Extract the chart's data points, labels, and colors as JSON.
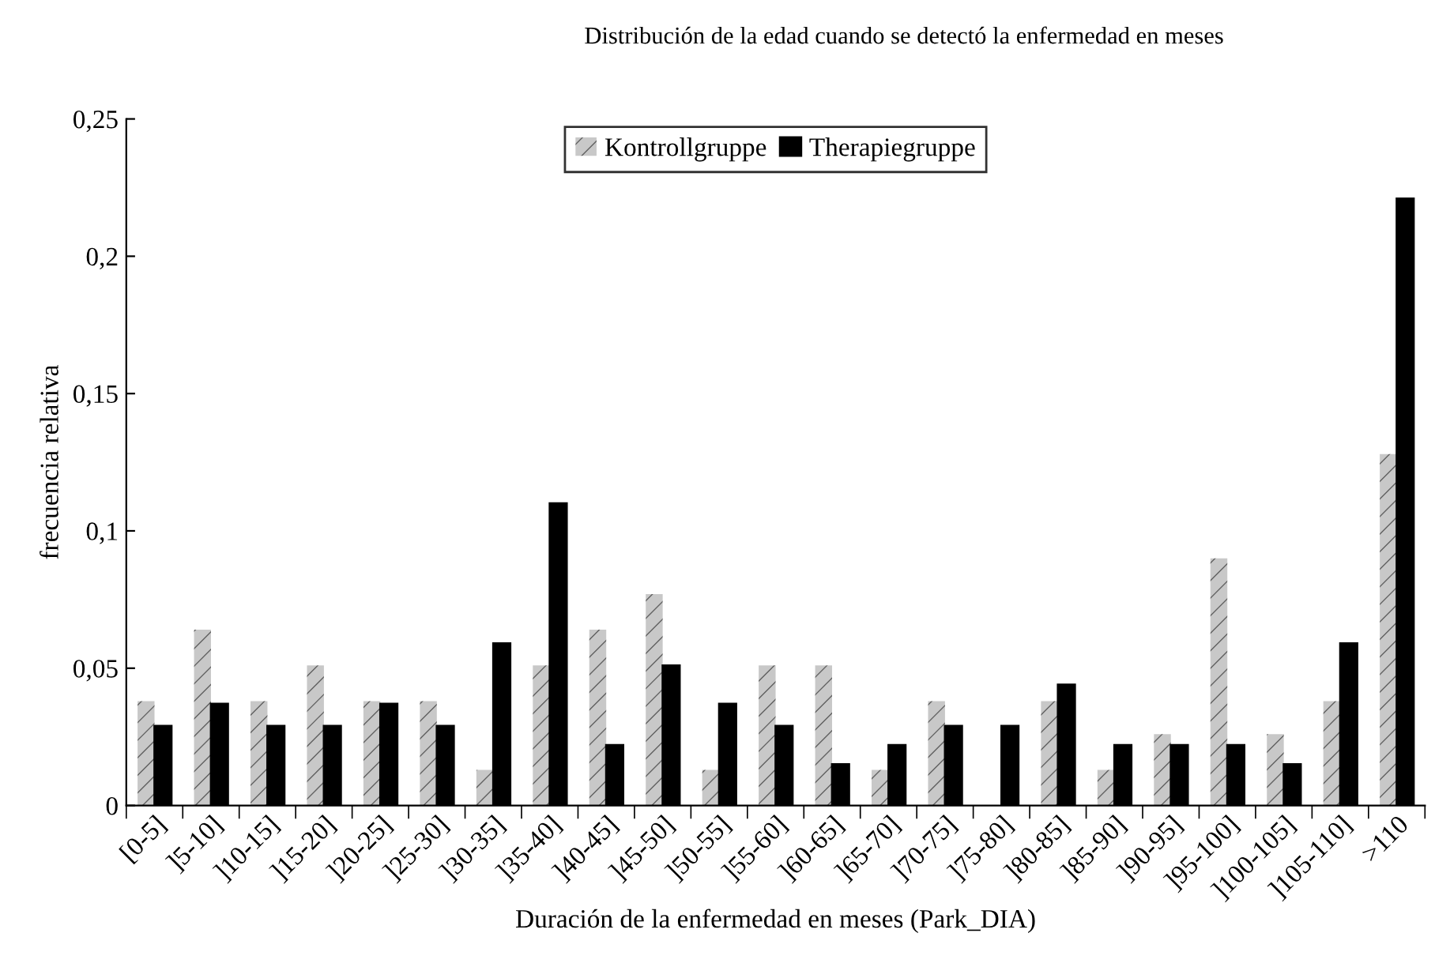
{
  "chart_data": {
    "type": "bar",
    "title": "Distribución de la edad cuando se detectó la enfermedad en meses",
    "xlabel": "Duración de la enfermedad en meses (Park_DIA)",
    "ylabel": "frecuencia relativa",
    "categories": [
      "[0-5]",
      "]5-10]",
      "]10-15]",
      "]15-20]",
      "]20-25]",
      "]25-30]",
      "]30-35]",
      "]35-40]",
      "]40-45]",
      "]45-50]",
      "]50-55]",
      "]55-60]",
      "]60-65]",
      "]65-70]",
      "]70-75]",
      "]75-80]",
      "]80-85]",
      "]85-90]",
      "]90-95]",
      "]95-100]",
      "]100-105]",
      "]105-110]",
      ">110"
    ],
    "series": [
      {
        "name": "Kontrollgruppe",
        "color": "#c8c8c8",
        "values": [
          0.038,
          0.064,
          0.038,
          0.051,
          0.038,
          0.038,
          0.013,
          0.051,
          0.064,
          0.077,
          0.013,
          0.051,
          0.051,
          0.013,
          0.038,
          0,
          0.038,
          0.013,
          0.026,
          0.09,
          0.026,
          0.038,
          0.128
        ]
      },
      {
        "name": "Therapiegruppe",
        "color": "#000000",
        "values": [
          0.029,
          0.037,
          0.029,
          0.029,
          0.037,
          0.029,
          0.059,
          0.11,
          0.022,
          0.051,
          0.037,
          0.029,
          0.015,
          0.022,
          0.029,
          0.029,
          0.044,
          0.022,
          0.022,
          0.022,
          0.015,
          0.059,
          0.221
        ]
      }
    ],
    "ylim": [
      0,
      0.25
    ],
    "yticks": [
      0,
      {
        "value": 0.05,
        "label": "0,05"
      },
      {
        "value": 0.1,
        "label": "0,1"
      },
      {
        "value": 0.15,
        "label": "0,15"
      },
      {
        "value": 0.2,
        "label": "0,2"
      },
      {
        "value": 0.25,
        "label": "0,25"
      }
    ],
    "grid": false,
    "legend": "top"
  }
}
